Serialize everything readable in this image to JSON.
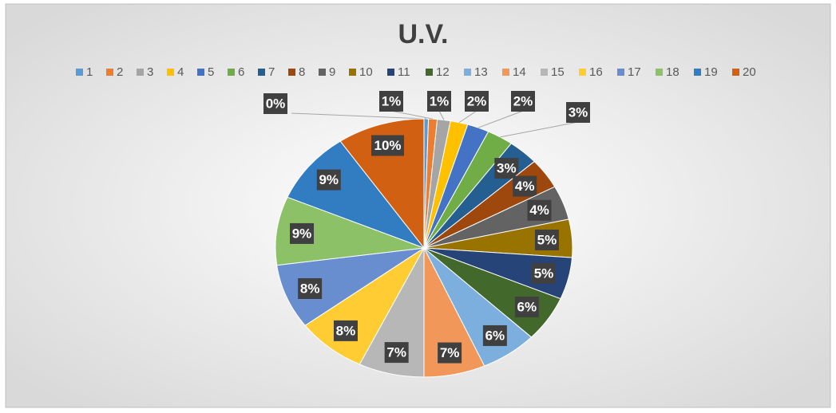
{
  "chart_data": {
    "type": "pie",
    "title": "U.V.",
    "categories": [
      "1",
      "2",
      "3",
      "4",
      "5",
      "6",
      "7",
      "8",
      "9",
      "10",
      "11",
      "12",
      "13",
      "14",
      "15",
      "16",
      "17",
      "18",
      "19",
      "20"
    ],
    "values": [
      0.48,
      0.95,
      1.43,
      1.9,
      2.38,
      2.86,
      3.33,
      3.81,
      4.29,
      4.76,
      5.24,
      5.71,
      6.19,
      6.67,
      7.14,
      7.62,
      8.1,
      8.57,
      9.05,
      9.52
    ],
    "value_labels": [
      "0%",
      "1%",
      "1%",
      "2%",
      "2%",
      "3%",
      "3%",
      "4%",
      "4%",
      "5%",
      "5%",
      "6%",
      "6%",
      "7%",
      "7%",
      "8%",
      "8%",
      "9%",
      "9%",
      "10%"
    ],
    "colors": [
      "#5b9bd5",
      "#ed7d31",
      "#a5a5a5",
      "#ffc000",
      "#4472c4",
      "#70ad47",
      "#255e91",
      "#9e480e",
      "#636363",
      "#997300",
      "#264478",
      "#43682b",
      "#7cafdd",
      "#f1975a",
      "#b7b7b7",
      "#ffcd33",
      "#698ed0",
      "#8cc168",
      "#327dc2",
      "#d26012"
    ],
    "legend": "top"
  }
}
